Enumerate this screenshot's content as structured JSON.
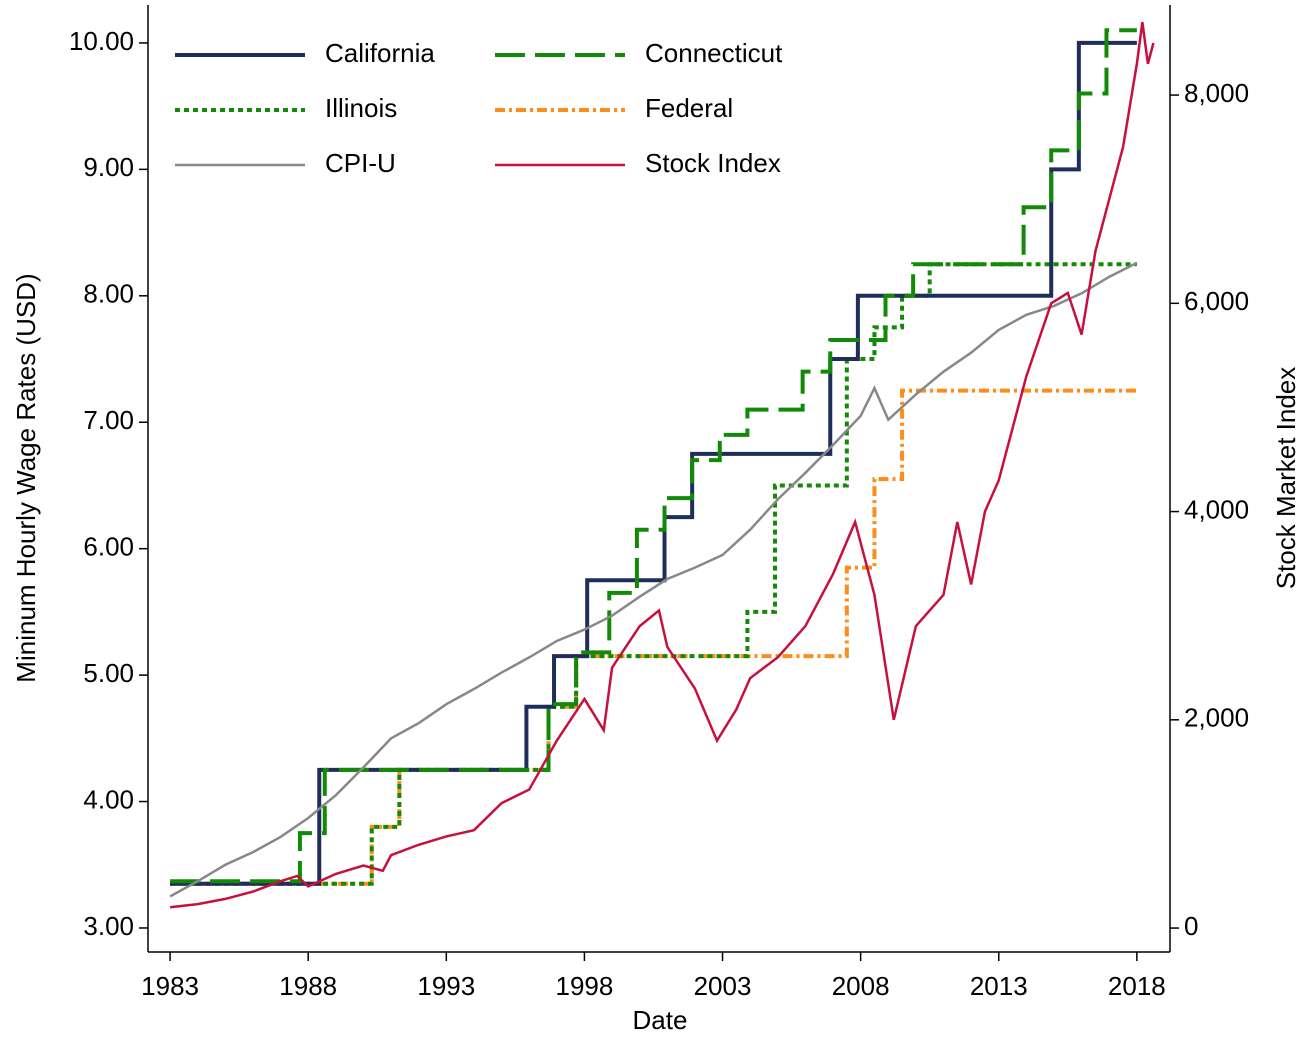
{
  "chart_data": {
    "type": "line",
    "xlabel": "Date",
    "ylabel": "Mininum Hourly Wage Rates (USD)",
    "y2label": "Stock Market Index",
    "xlim": [
      1982.2,
      2019.2
    ],
    "xticks": [
      1983,
      1988,
      1993,
      1998,
      2003,
      2008,
      2013,
      2018
    ],
    "ylim": [
      2.81,
      10.3
    ],
    "yticks": [
      {
        "value": 3,
        "label": "3.00"
      },
      {
        "value": 4,
        "label": "4.00"
      },
      {
        "value": 5,
        "label": "5.00"
      },
      {
        "value": 6,
        "label": "6.00"
      },
      {
        "value": 7,
        "label": "7.00"
      },
      {
        "value": 8,
        "label": "8.00"
      },
      {
        "value": 9,
        "label": "9.00"
      },
      {
        "value": 10,
        "label": "10.00"
      }
    ],
    "y2lim": [
      -230,
      8865
    ],
    "y2ticks": [
      0,
      {
        "value": 2000,
        "label": "2,000"
      },
      {
        "value": 4000,
        "label": "4,000"
      },
      {
        "value": 6000,
        "label": "6,000"
      },
      {
        "value": 8000,
        "label": "8,000"
      }
    ],
    "grid": false,
    "legend": "top-left",
    "series": [
      {
        "name": "California",
        "color": "#1f2d5a",
        "step": true,
        "style": "solid",
        "width": 4,
        "x": [
          1983,
          1988.4,
          1995.9,
          1996.9,
          1998.1,
          2000.9,
          2001.9,
          2006.9,
          2007.9,
          2014.9,
          2015.9,
          2018
        ],
        "values": [
          3.35,
          4.25,
          4.75,
          5.15,
          5.75,
          6.25,
          6.75,
          7.5,
          8.0,
          9.0,
          10.0,
          10.0
        ]
      },
      {
        "name": "Connecticut",
        "color": "#138a07",
        "step": true,
        "style": "long-dash",
        "width": 4,
        "x": [
          1983,
          1987.7,
          1988.6,
          1996.7,
          1997.7,
          1998.9,
          1999.9,
          2000.9,
          2001.9,
          2002.9,
          2003.9,
          2005.9,
          2006.9,
          2008.9,
          2009.9,
          2013.9,
          2014.9,
          2015.9,
          2016.9,
          2018
        ],
        "values": [
          3.37,
          3.75,
          4.25,
          4.77,
          5.18,
          5.65,
          6.15,
          6.4,
          6.7,
          6.9,
          7.1,
          7.4,
          7.65,
          8.0,
          8.25,
          8.7,
          9.15,
          9.6,
          10.1,
          10.1
        ]
      },
      {
        "name": "Illinois",
        "color": "#138a07",
        "step": true,
        "style": "dot",
        "width": 4,
        "x": [
          1983,
          1990.3,
          1991.3,
          1996.7,
          1997.7,
          2003.9,
          2004.9,
          2007.5,
          2008.5,
          2009.5,
          2010.5,
          2018
        ],
        "values": [
          3.35,
          3.8,
          4.25,
          4.75,
          5.15,
          5.5,
          6.5,
          7.5,
          7.75,
          8.0,
          8.25,
          8.25
        ]
      },
      {
        "name": "Federal",
        "color": "#ff8c1a",
        "step": true,
        "style": "dash-dot",
        "width": 4,
        "x": [
          1983,
          1990.3,
          1991.3,
          1996.7,
          1997.7,
          2007.5,
          2008.5,
          2009.5,
          2018
        ],
        "values": [
          3.35,
          3.8,
          4.25,
          4.75,
          5.15,
          5.85,
          6.55,
          7.25,
          7.25
        ]
      },
      {
        "name": "CPI-U",
        "color": "#888888",
        "step": false,
        "style": "solid",
        "width": 2.5,
        "x": [
          1983,
          1984,
          1985,
          1986,
          1987,
          1988,
          1989,
          1990,
          1991,
          1992,
          1993,
          1994,
          1995,
          1996,
          1997,
          1998,
          1999,
          2000,
          2001,
          2002,
          2003,
          2004,
          2005,
          2006,
          2007,
          2008,
          2008.5,
          2009,
          2010,
          2011,
          2012,
          2013,
          2014,
          2015,
          2016,
          2017,
          2018
        ],
        "values": [
          3.25,
          3.37,
          3.5,
          3.6,
          3.72,
          3.87,
          4.05,
          4.27,
          4.5,
          4.62,
          4.77,
          4.89,
          5.02,
          5.14,
          5.27,
          5.36,
          5.47,
          5.62,
          5.76,
          5.85,
          5.95,
          6.15,
          6.39,
          6.6,
          6.82,
          7.05,
          7.27,
          7.02,
          7.22,
          7.4,
          7.55,
          7.73,
          7.85,
          7.92,
          8.02,
          8.15,
          8.26
        ]
      },
      {
        "name": "Stock Index",
        "color": "#c8103e",
        "step": false,
        "style": "solid",
        "width": 2.5,
        "axis": "y2",
        "x": [
          1983,
          1984,
          1985,
          1986,
          1987,
          1987.6,
          1988,
          1989,
          1990,
          1990.7,
          1991,
          1992,
          1993,
          1994,
          1995,
          1996,
          1997,
          1998,
          1998.7,
          1999,
          2000,
          2000.7,
          2001,
          2002,
          2002.8,
          2003.5,
          2004,
          2005,
          2006,
          2007,
          2007.8,
          2008.5,
          2009.2,
          2010,
          2011,
          2011.5,
          2012,
          2012.5,
          2013,
          2014,
          2014.9,
          2015.5,
          2016,
          2016.5,
          2017,
          2017.5,
          2018,
          2018.2,
          2018.4,
          2018.6
        ],
        "values": [
          200,
          230,
          280,
          350,
          450,
          500,
          400,
          520,
          600,
          550,
          700,
          800,
          880,
          940,
          1200,
          1330,
          1800,
          2200,
          1900,
          2500,
          2900,
          3050,
          2700,
          2300,
          1800,
          2100,
          2400,
          2600,
          2900,
          3400,
          3900,
          3200,
          2000,
          2900,
          3200,
          3900,
          3300,
          4000,
          4300,
          5300,
          6000,
          6100,
          5700,
          6500,
          7000,
          7500,
          8300,
          8700,
          8300,
          8500
        ]
      }
    ]
  }
}
